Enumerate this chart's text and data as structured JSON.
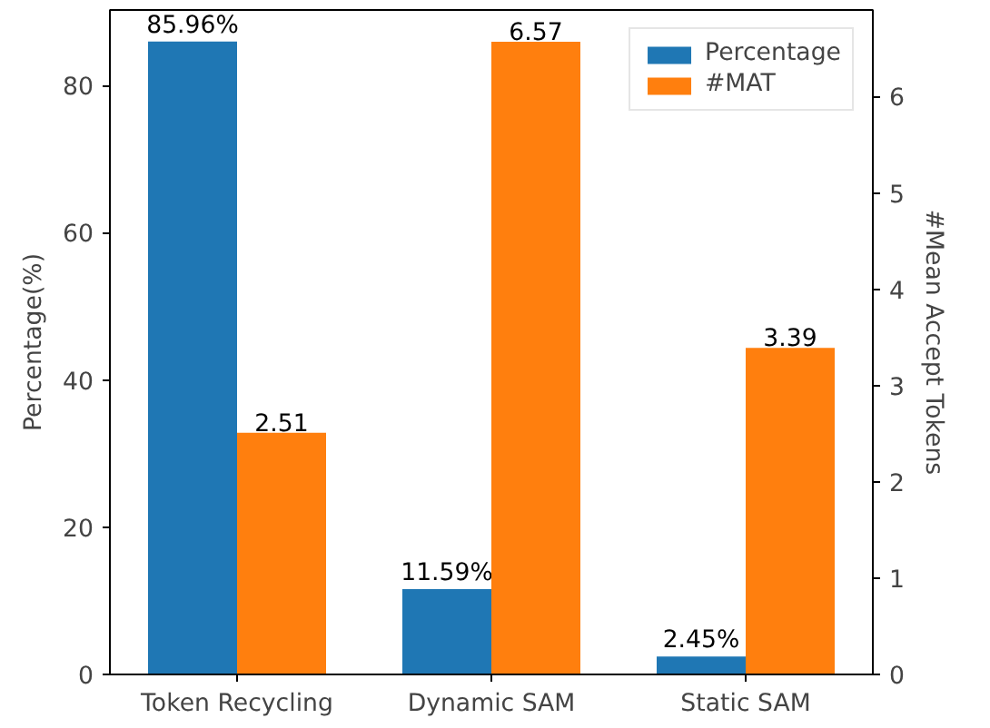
{
  "chart_data": {
    "type": "bar",
    "categories": [
      "Token Recycling",
      "Dynamic SAM",
      "Static SAM"
    ],
    "ylabel": "Percentage(%)",
    "y2label": "#Mean Accept Tokens",
    "ylim": [
      0,
      90.26
    ],
    "yticks": [
      0,
      20,
      40,
      60,
      80
    ],
    "y2lim": [
      0,
      6.9
    ],
    "y2ticks": [
      0,
      1,
      2,
      3,
      4,
      5,
      6
    ],
    "legend": "top right",
    "grid": false,
    "series": [
      {
        "name": "Percentage",
        "color": "#1f77b4",
        "values": [
          85.96,
          11.59,
          2.45
        ],
        "value_labels": [
          "85.96%",
          "11.59%",
          "2.45%"
        ]
      },
      {
        "name": "#MAT",
        "color": "#ff7f0e",
        "values": [
          2.51,
          6.57,
          3.39
        ],
        "value_labels": [
          "2.51",
          "6.57",
          "3.39"
        ],
        "axis": "y2"
      }
    ]
  }
}
